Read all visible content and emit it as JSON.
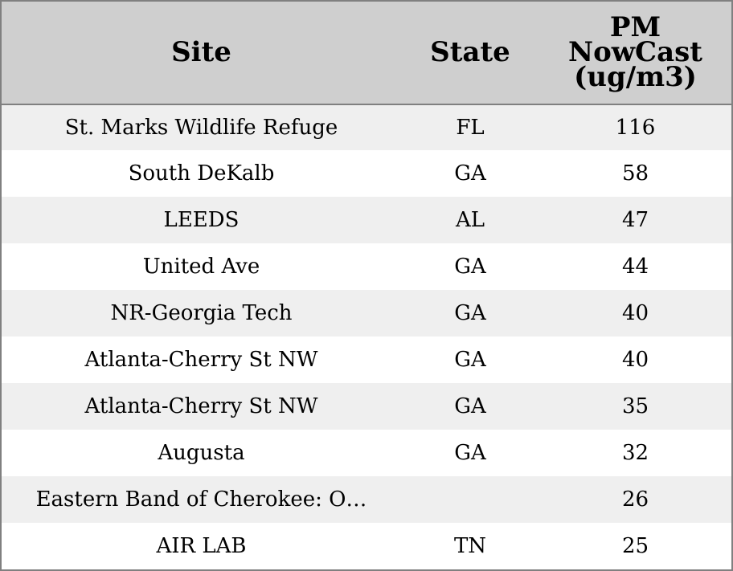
{
  "chart_data": {
    "type": "table",
    "columns": [
      "Site",
      "State",
      "PM NowCast (ug/m3)"
    ],
    "column_header_lines": {
      "site": "Site",
      "state": "State",
      "pm": [
        "PM",
        "NowCast",
        "(ug/m3)"
      ]
    },
    "rows": [
      {
        "site": "St. Marks Wildlife Refuge",
        "state": "FL",
        "pm": "116"
      },
      {
        "site": "South DeKalb",
        "state": "GA",
        "pm": "58"
      },
      {
        "site": "LEEDS",
        "state": "AL",
        "pm": "47"
      },
      {
        "site": "United Ave",
        "state": "GA",
        "pm": "44"
      },
      {
        "site": "NR-Georgia Tech",
        "state": "GA",
        "pm": "40"
      },
      {
        "site": "Atlanta-Cherry St NW",
        "state": "GA",
        "pm": "40"
      },
      {
        "site": "Atlanta-Cherry St NW",
        "state": "GA",
        "pm": "35"
      },
      {
        "site": "Augusta",
        "state": "GA",
        "pm": "32"
      },
      {
        "site": "Eastern Band of Cherokee: O…",
        "state": "",
        "pm": "26"
      },
      {
        "site": "AIR LAB",
        "state": "TN",
        "pm": "25"
      }
    ],
    "colors": {
      "header_bg": "#cfcfcf",
      "odd_row_bg": "#efefef",
      "even_row_bg": "#ffffff",
      "border": "#808080"
    }
  }
}
